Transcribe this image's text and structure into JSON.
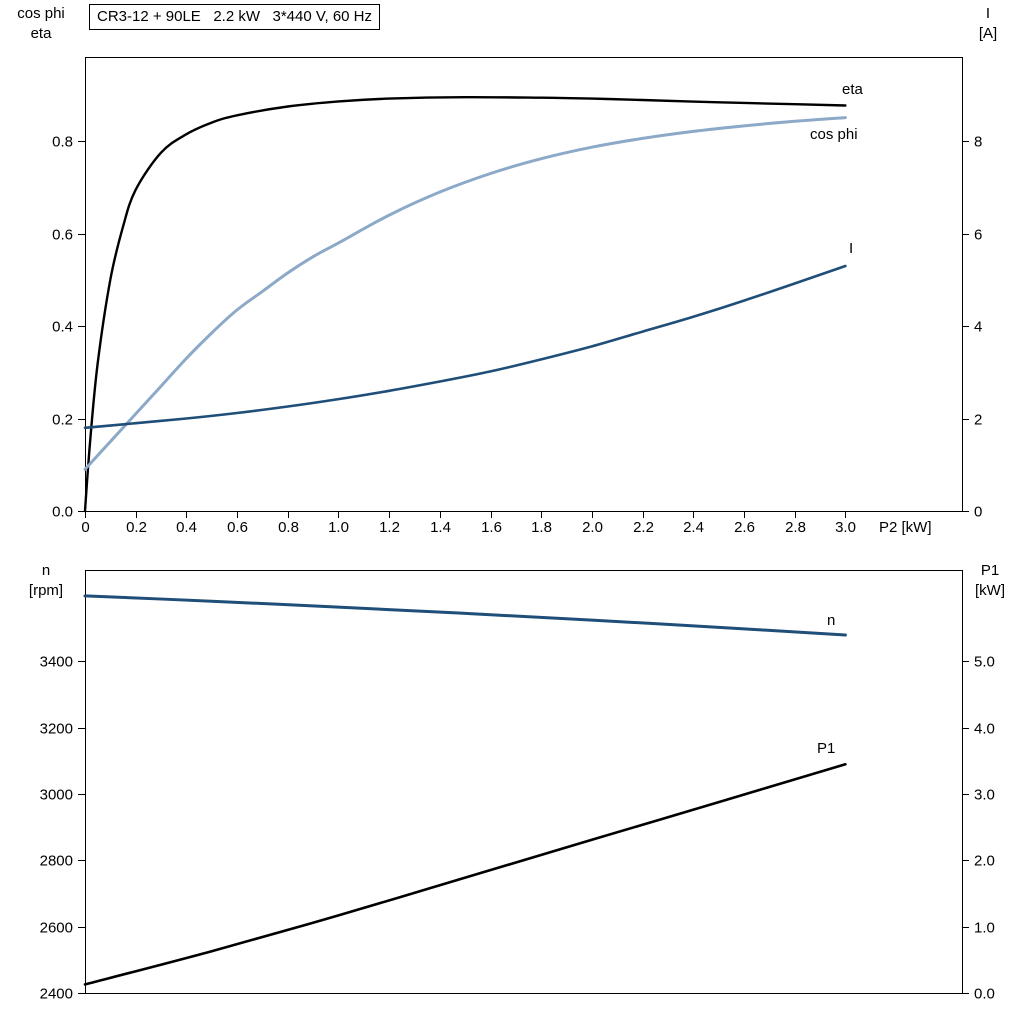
{
  "chart_data": [
    {
      "id": "motor-top",
      "type": "line",
      "title": "CR3-12 + 90LE   2.2 kW   3*440 V, 60 Hz",
      "xlabel": "P2 [kW]",
      "y_left_label": [
        "cos phi",
        "eta"
      ],
      "y_right_label": [
        "I",
        "[A]"
      ],
      "x_range": [
        0,
        3.46
      ],
      "x_ticks": {
        "values": [
          0,
          0.2,
          0.4,
          0.6,
          0.8,
          1.0,
          1.2,
          1.4,
          1.6,
          1.8,
          2.0,
          2.2,
          2.4,
          2.6,
          2.8,
          3.0
        ],
        "labels": [
          "0",
          "0.2",
          "0.4",
          "0.6",
          "0.8",
          "1.0",
          "1.2",
          "1.4",
          "1.6",
          "1.8",
          "2.0",
          "2.2",
          "2.4",
          "2.6",
          "2.8",
          "3.0"
        ]
      },
      "y_left": {
        "range": [
          0,
          0.982
        ],
        "ticks": [
          0,
          0.2,
          0.4,
          0.6,
          0.8
        ],
        "tick_labels": [
          "0.0",
          "0.2",
          "0.4",
          "0.6",
          "0.8"
        ]
      },
      "y_right": {
        "range": [
          0,
          9.82
        ],
        "ticks": [
          0,
          2,
          4,
          6,
          8
        ],
        "tick_labels": [
          "0",
          "2",
          "4",
          "6",
          "8"
        ]
      },
      "series": [
        {
          "name": "eta",
          "axis": "left",
          "color": "#000000",
          "width": 2.4,
          "points": [
            [
              0,
              0
            ],
            [
              0.02,
              0.15
            ],
            [
              0.05,
              0.32
            ],
            [
              0.1,
              0.5
            ],
            [
              0.15,
              0.615
            ],
            [
              0.2,
              0.695
            ],
            [
              0.3,
              0.775
            ],
            [
              0.4,
              0.815
            ],
            [
              0.5,
              0.84
            ],
            [
              0.6,
              0.856
            ],
            [
              0.8,
              0.875
            ],
            [
              1.0,
              0.886
            ],
            [
              1.2,
              0.892
            ],
            [
              1.5,
              0.895
            ],
            [
              1.8,
              0.894
            ],
            [
              2.0,
              0.892
            ],
            [
              2.2,
              0.889
            ],
            [
              2.5,
              0.884
            ],
            [
              2.8,
              0.88
            ],
            [
              3.0,
              0.877
            ]
          ]
        },
        {
          "name": "cos phi",
          "axis": "left",
          "color": "#8CA9C8",
          "width": 3,
          "points": [
            [
              0,
              0.09
            ],
            [
              0.1,
              0.15
            ],
            [
              0.2,
              0.21
            ],
            [
              0.3,
              0.27
            ],
            [
              0.4,
              0.33
            ],
            [
              0.5,
              0.385
            ],
            [
              0.6,
              0.435
            ],
            [
              0.7,
              0.475
            ],
            [
              0.8,
              0.515
            ],
            [
              0.9,
              0.55
            ],
            [
              1.0,
              0.58
            ],
            [
              1.2,
              0.64
            ],
            [
              1.4,
              0.69
            ],
            [
              1.6,
              0.73
            ],
            [
              1.8,
              0.762
            ],
            [
              2.0,
              0.787
            ],
            [
              2.2,
              0.806
            ],
            [
              2.4,
              0.821
            ],
            [
              2.6,
              0.833
            ],
            [
              2.8,
              0.843
            ],
            [
              3.0,
              0.851
            ]
          ]
        },
        {
          "name": "I",
          "axis": "right",
          "color": "#1F4E79",
          "width": 2.6,
          "points": [
            [
              0,
              1.8
            ],
            [
              0.2,
              1.9
            ],
            [
              0.4,
              2.0
            ],
            [
              0.6,
              2.12
            ],
            [
              0.8,
              2.26
            ],
            [
              1.0,
              2.42
            ],
            [
              1.2,
              2.6
            ],
            [
              1.4,
              2.8
            ],
            [
              1.6,
              3.02
            ],
            [
              1.8,
              3.28
            ],
            [
              2.0,
              3.56
            ],
            [
              2.2,
              3.88
            ],
            [
              2.4,
              4.2
            ],
            [
              2.6,
              4.55
            ],
            [
              2.8,
              4.92
            ],
            [
              3.0,
              5.3
            ]
          ]
        }
      ]
    },
    {
      "id": "motor-bottom",
      "type": "line",
      "xlabel": "",
      "y_left_label": [
        "n",
        "[rpm]"
      ],
      "y_right_label": [
        "P1",
        "[kW]"
      ],
      "x_range": [
        0,
        3.46
      ],
      "y_left": {
        "range": [
          2400,
          3676
        ],
        "ticks": [
          2400,
          2600,
          2800,
          3000,
          3200,
          3400
        ],
        "tick_labels": [
          "2400",
          "2600",
          "2800",
          "3000",
          "3200",
          "3400"
        ]
      },
      "y_right": {
        "range": [
          0,
          6.38
        ],
        "ticks": [
          0,
          1,
          2,
          3,
          4,
          5
        ],
        "tick_labels": [
          "0.0",
          "1.0",
          "2.0",
          "3.0",
          "4.0",
          "5.0"
        ]
      },
      "series": [
        {
          "name": "n",
          "axis": "left",
          "color": "#1F4E79",
          "width": 3,
          "points": [
            [
              0,
              3598
            ],
            [
              0.5,
              3582
            ],
            [
              1.0,
              3564
            ],
            [
              1.5,
              3545
            ],
            [
              2.0,
              3525
            ],
            [
              2.5,
              3503
            ],
            [
              3.0,
              3480
            ]
          ]
        },
        {
          "name": "P1",
          "axis": "right",
          "color": "#000000",
          "width": 2.6,
          "points": [
            [
              0,
              0.13
            ],
            [
              0.5,
              0.63
            ],
            [
              1.0,
              1.17
            ],
            [
              1.5,
              1.74
            ],
            [
              2.0,
              2.31
            ],
            [
              2.5,
              2.88
            ],
            [
              3.0,
              3.45
            ]
          ]
        }
      ]
    }
  ]
}
